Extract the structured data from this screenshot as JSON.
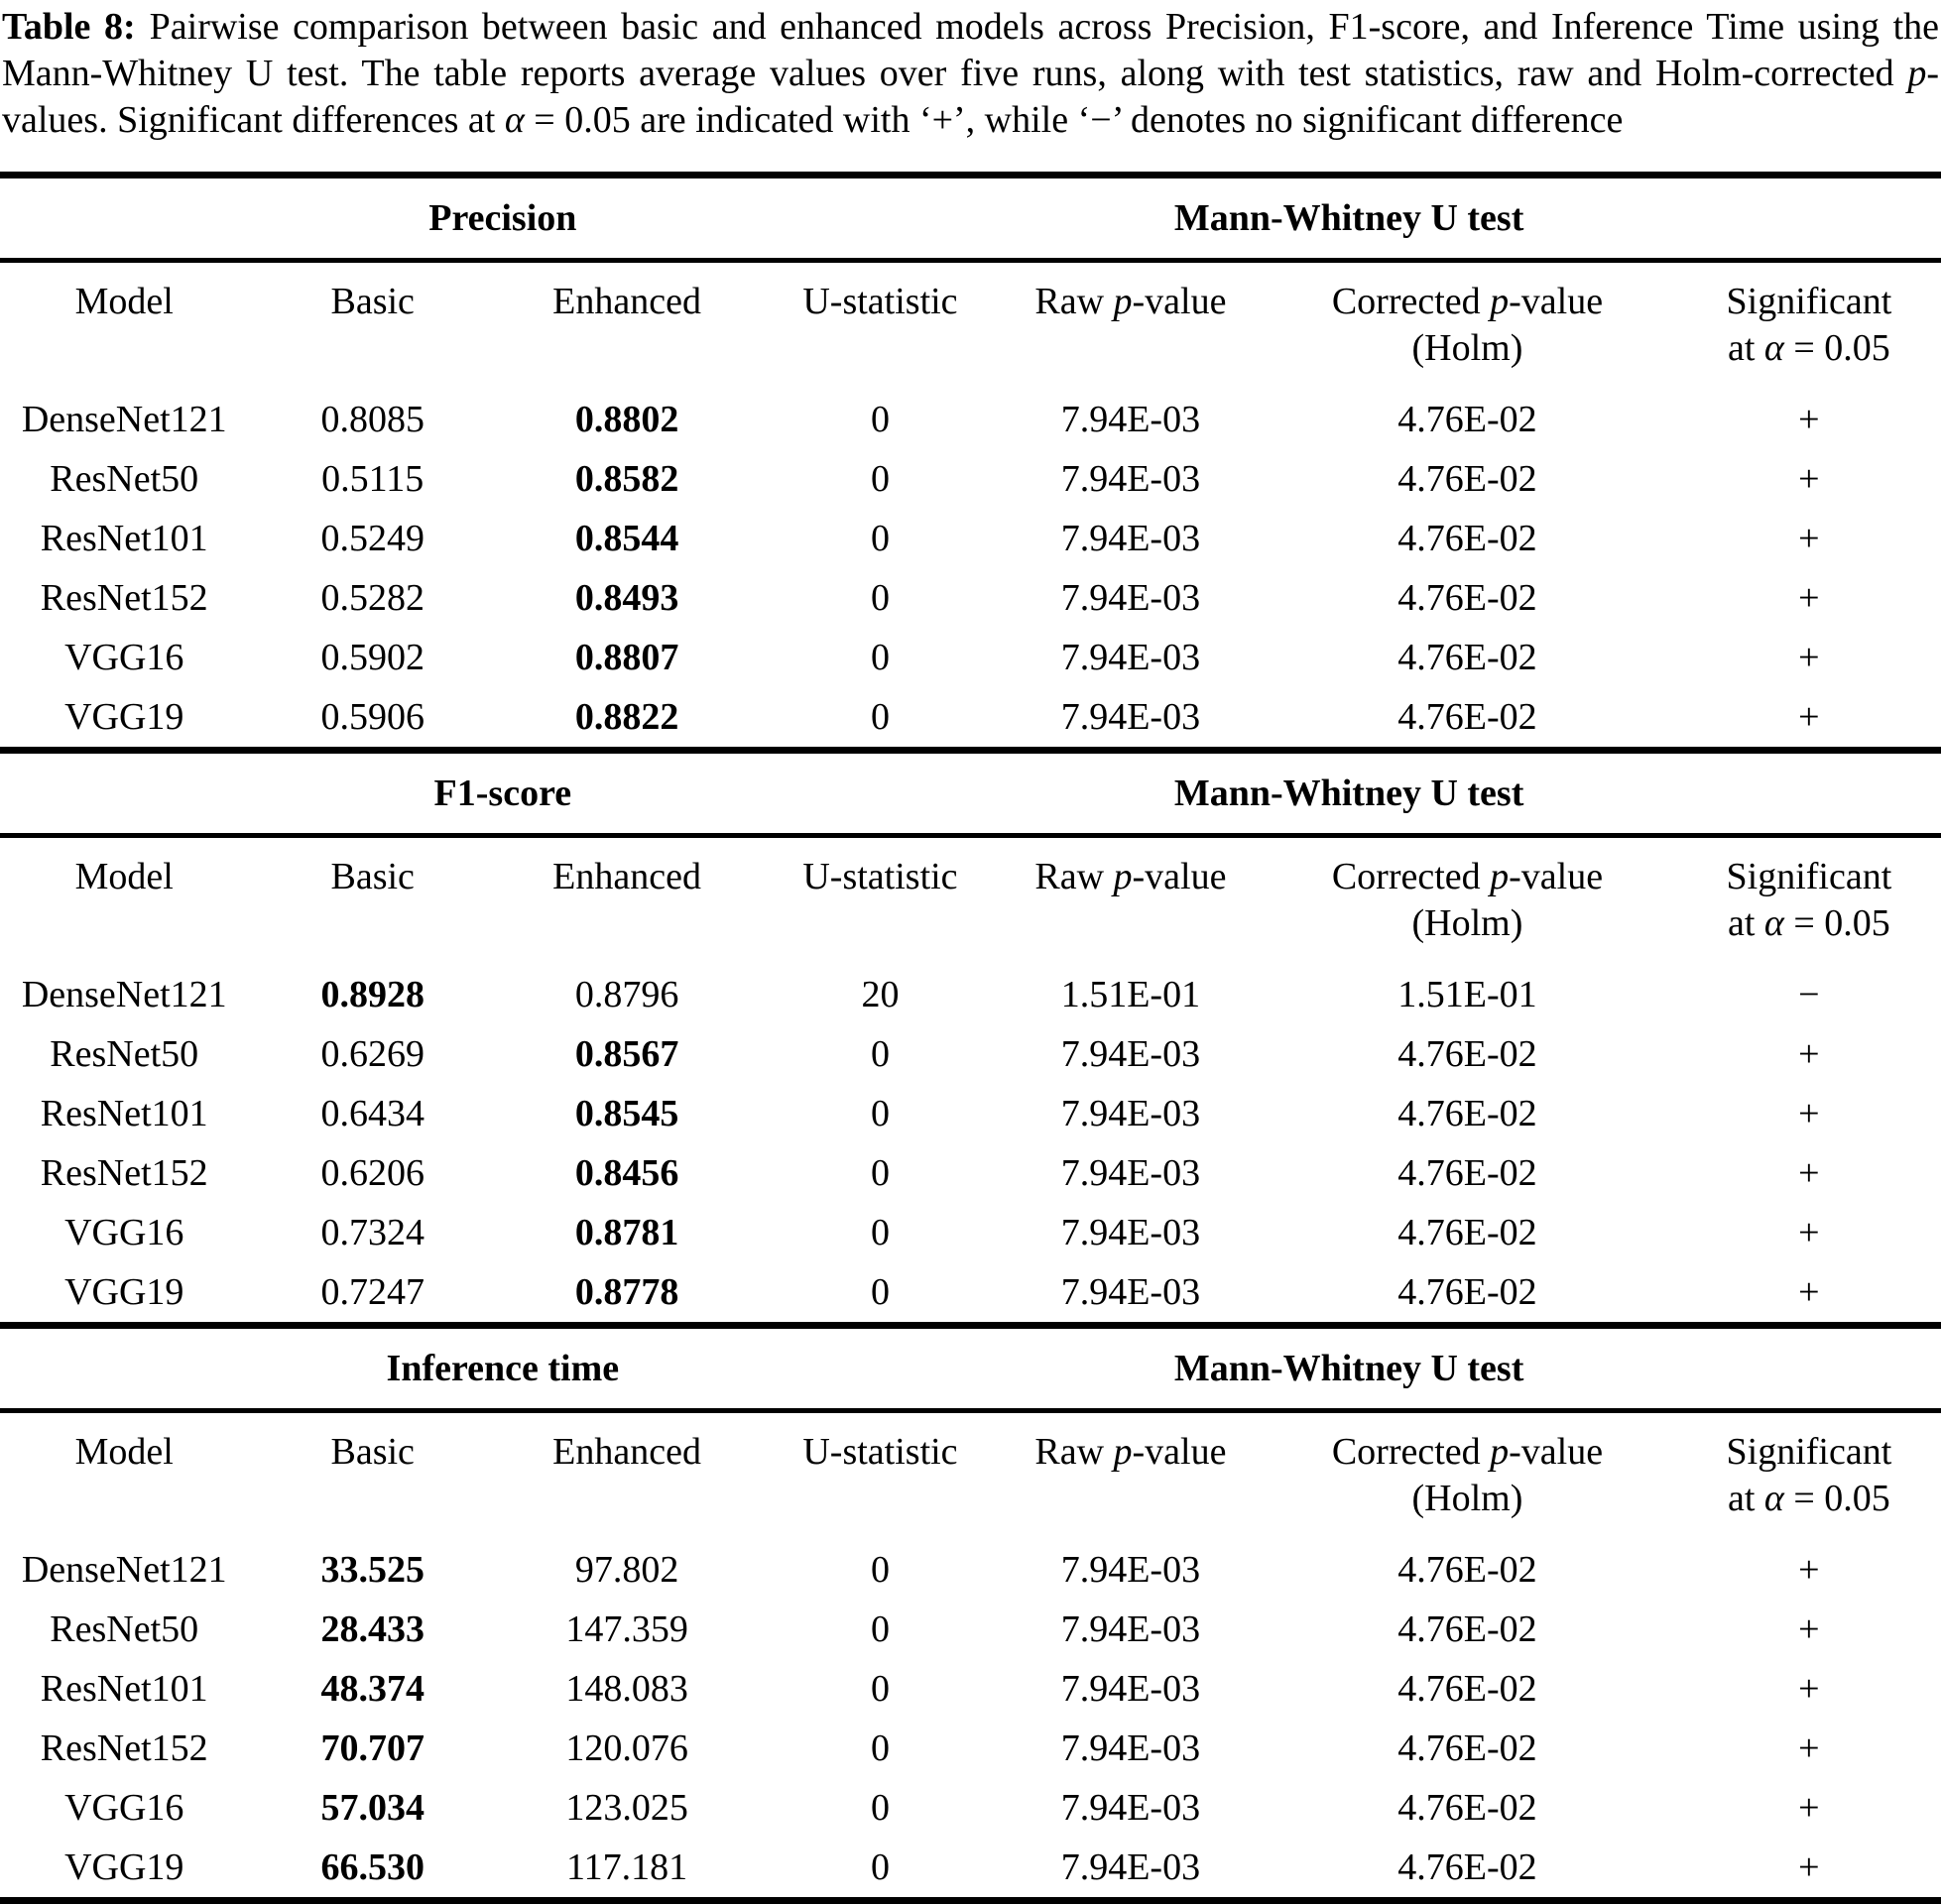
{
  "caption": {
    "label": "Table 8:",
    "body_1": "Pairwise comparison between basic and enhanced models across Precision, F1-score, and Inference Time using the Mann-Whitney U test. The table reports average values over five runs, along with test statistics, raw and Holm-corrected ",
    "p_italic": "p",
    "body_2": "-values. Significant differences at ",
    "alpha_italic": "α",
    "body_3": " = 0.05 are indicated with ‘+’, while ‘−’ denotes no significant difference"
  },
  "table": {
    "group_test_header": "Mann-Whitney U test",
    "columns": {
      "model": "Model",
      "basic": "Basic",
      "enhanced": "Enhanced",
      "u_statistic": "U-statistic",
      "raw_prefix": "Raw ",
      "p_italic": "p",
      "value_suffix": "-value",
      "corrected_prefix": "Corrected ",
      "corrected_sub": "(Holm)",
      "significant": "Significant",
      "sig_sub_prefix": "at ",
      "alpha_italic": "α",
      "sig_sub_suffix": " = 0.05"
    },
    "sections": [
      {
        "metric": "Precision",
        "rows": [
          {
            "model": "DenseNet121",
            "basic": "0.8085",
            "enhanced": "0.8802",
            "bold": "enhanced",
            "u": "0",
            "raw": "7.94E-03",
            "corrected": "4.76E-02",
            "sig": "+"
          },
          {
            "model": "ResNet50",
            "basic": "0.5115",
            "enhanced": "0.8582",
            "bold": "enhanced",
            "u": "0",
            "raw": "7.94E-03",
            "corrected": "4.76E-02",
            "sig": "+"
          },
          {
            "model": "ResNet101",
            "basic": "0.5249",
            "enhanced": "0.8544",
            "bold": "enhanced",
            "u": "0",
            "raw": "7.94E-03",
            "corrected": "4.76E-02",
            "sig": "+"
          },
          {
            "model": "ResNet152",
            "basic": "0.5282",
            "enhanced": "0.8493",
            "bold": "enhanced",
            "u": "0",
            "raw": "7.94E-03",
            "corrected": "4.76E-02",
            "sig": "+"
          },
          {
            "model": "VGG16",
            "basic": "0.5902",
            "enhanced": "0.8807",
            "bold": "enhanced",
            "u": "0",
            "raw": "7.94E-03",
            "corrected": "4.76E-02",
            "sig": "+"
          },
          {
            "model": "VGG19",
            "basic": "0.5906",
            "enhanced": "0.8822",
            "bold": "enhanced",
            "u": "0",
            "raw": "7.94E-03",
            "corrected": "4.76E-02",
            "sig": "+"
          }
        ]
      },
      {
        "metric": "F1-score",
        "rows": [
          {
            "model": "DenseNet121",
            "basic": "0.8928",
            "enhanced": "0.8796",
            "bold": "basic",
            "u": "20",
            "raw": "1.51E-01",
            "corrected": "1.51E-01",
            "sig": "−"
          },
          {
            "model": "ResNet50",
            "basic": "0.6269",
            "enhanced": "0.8567",
            "bold": "enhanced",
            "u": "0",
            "raw": "7.94E-03",
            "corrected": "4.76E-02",
            "sig": "+"
          },
          {
            "model": "ResNet101",
            "basic": "0.6434",
            "enhanced": "0.8545",
            "bold": "enhanced",
            "u": "0",
            "raw": "7.94E-03",
            "corrected": "4.76E-02",
            "sig": "+"
          },
          {
            "model": "ResNet152",
            "basic": "0.6206",
            "enhanced": "0.8456",
            "bold": "enhanced",
            "u": "0",
            "raw": "7.94E-03",
            "corrected": "4.76E-02",
            "sig": "+"
          },
          {
            "model": "VGG16",
            "basic": "0.7324",
            "enhanced": "0.8781",
            "bold": "enhanced",
            "u": "0",
            "raw": "7.94E-03",
            "corrected": "4.76E-02",
            "sig": "+"
          },
          {
            "model": "VGG19",
            "basic": "0.7247",
            "enhanced": "0.8778",
            "bold": "enhanced",
            "u": "0",
            "raw": "7.94E-03",
            "corrected": "4.76E-02",
            "sig": "+"
          }
        ]
      },
      {
        "metric": "Inference time",
        "rows": [
          {
            "model": "DenseNet121",
            "basic": "33.525",
            "enhanced": "97.802",
            "bold": "basic",
            "u": "0",
            "raw": "7.94E-03",
            "corrected": "4.76E-02",
            "sig": "+"
          },
          {
            "model": "ResNet50",
            "basic": "28.433",
            "enhanced": "147.359",
            "bold": "basic",
            "u": "0",
            "raw": "7.94E-03",
            "corrected": "4.76E-02",
            "sig": "+"
          },
          {
            "model": "ResNet101",
            "basic": "48.374",
            "enhanced": "148.083",
            "bold": "basic",
            "u": "0",
            "raw": "7.94E-03",
            "corrected": "4.76E-02",
            "sig": "+"
          },
          {
            "model": "ResNet152",
            "basic": "70.707",
            "enhanced": "120.076",
            "bold": "basic",
            "u": "0",
            "raw": "7.94E-03",
            "corrected": "4.76E-02",
            "sig": "+"
          },
          {
            "model": "VGG16",
            "basic": "57.034",
            "enhanced": "123.025",
            "bold": "basic",
            "u": "0",
            "raw": "7.94E-03",
            "corrected": "4.76E-02",
            "sig": "+"
          },
          {
            "model": "VGG19",
            "basic": "66.530",
            "enhanced": "117.181",
            "bold": "basic",
            "u": "0",
            "raw": "7.94E-03",
            "corrected": "4.76E-02",
            "sig": "+"
          }
        ]
      }
    ]
  },
  "styles": {
    "text_color": "#000000",
    "background": "#ffffff"
  }
}
